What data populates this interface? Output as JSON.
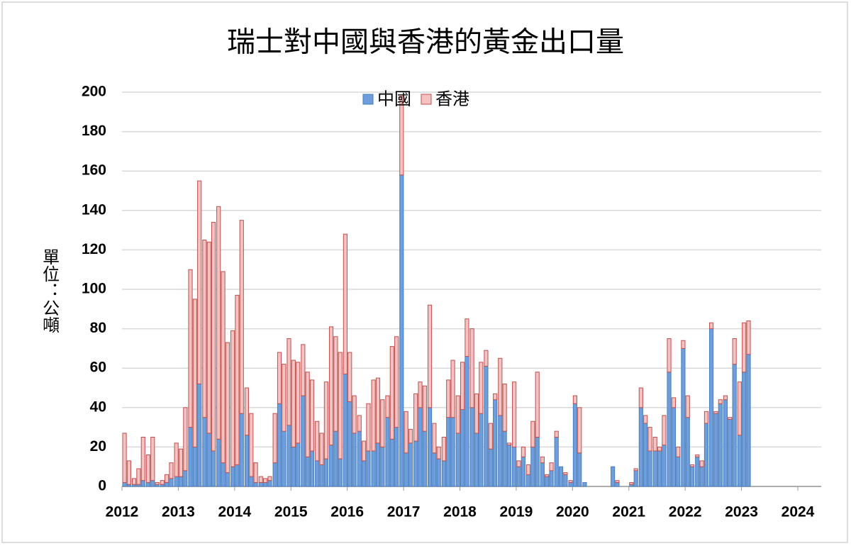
{
  "chart_data": {
    "type": "stacked-bar",
    "title": "瑞士對中國與香港的黃金出口量",
    "y_label": "單位：公噸",
    "xlim": [
      2012,
      2024
    ],
    "xticks": [
      2012,
      2013,
      2014,
      2015,
      2016,
      2017,
      2018,
      2019,
      2020,
      2021,
      2022,
      2023,
      2024
    ],
    "ylim": [
      0,
      200
    ],
    "yticks": [
      0,
      20,
      40,
      60,
      80,
      100,
      120,
      140,
      160,
      180,
      200
    ],
    "grid": true,
    "legend": "top",
    "x": [
      2012.0,
      2012.08,
      2012.17,
      2012.25,
      2012.33,
      2012.42,
      2012.5,
      2012.58,
      2012.67,
      2012.75,
      2012.83,
      2012.92,
      2013.0,
      2013.08,
      2013.17,
      2013.25,
      2013.33,
      2013.42,
      2013.5,
      2013.58,
      2013.67,
      2013.75,
      2013.83,
      2013.92,
      2014.0,
      2014.08,
      2014.17,
      2014.25,
      2014.33,
      2014.42,
      2014.5,
      2014.58,
      2014.67,
      2014.75,
      2014.83,
      2014.92,
      2015.0,
      2015.08,
      2015.17,
      2015.25,
      2015.33,
      2015.42,
      2015.5,
      2015.58,
      2015.67,
      2015.75,
      2015.83,
      2015.92,
      2016.0,
      2016.08,
      2016.17,
      2016.25,
      2016.33,
      2016.42,
      2016.5,
      2016.58,
      2016.67,
      2016.75,
      2016.83,
      2016.92,
      2017.0,
      2017.08,
      2017.17,
      2017.25,
      2017.33,
      2017.42,
      2017.5,
      2017.58,
      2017.67,
      2017.75,
      2017.83,
      2017.92,
      2018.0,
      2018.08,
      2018.17,
      2018.25,
      2018.33,
      2018.42,
      2018.5,
      2018.58,
      2018.67,
      2018.75,
      2018.83,
      2018.92,
      2019.0,
      2019.08,
      2019.17,
      2019.25,
      2019.33,
      2019.42,
      2019.5,
      2019.58,
      2019.67,
      2019.75,
      2019.83,
      2019.92,
      2020.0,
      2020.08,
      2020.17,
      2020.25,
      2020.33,
      2020.42,
      2020.5,
      2020.58,
      2020.67,
      2020.75,
      2020.83,
      2020.92,
      2021.0,
      2021.08,
      2021.17,
      2021.25,
      2021.33,
      2021.42,
      2021.5,
      2021.58,
      2021.67,
      2021.75,
      2021.83,
      2021.92,
      2022.0,
      2022.08,
      2022.17,
      2022.25,
      2022.33,
      2022.42,
      2022.5,
      2022.58,
      2022.67,
      2022.75,
      2022.83,
      2022.92,
      2023.0,
      2023.08
    ],
    "series": [
      {
        "name": "中國",
        "color": "#6f9edd",
        "values": [
          2,
          1,
          1,
          1,
          3,
          2,
          3,
          1,
          1,
          2,
          4,
          5,
          5,
          8,
          30,
          20,
          52,
          35,
          27,
          18,
          24,
          12,
          7,
          10,
          11,
          37,
          26,
          5,
          2,
          2,
          2,
          3,
          12,
          42,
          28,
          31,
          20,
          22,
          46,
          15,
          18,
          13,
          11,
          14,
          21,
          28,
          14,
          57,
          43,
          27,
          28,
          13,
          18,
          18,
          22,
          20,
          35,
          24,
          30,
          158,
          17,
          22,
          23,
          40,
          28,
          40,
          17,
          14,
          13,
          35,
          35,
          27,
          39,
          66,
          40,
          27,
          37,
          61,
          19,
          44,
          36,
          28,
          21,
          20,
          10,
          15,
          6,
          20,
          25,
          12,
          5,
          8,
          25,
          10,
          6,
          2,
          42,
          17,
          2,
          0,
          0,
          0,
          0,
          0,
          10,
          2,
          0,
          0,
          1,
          8,
          40,
          32,
          18,
          18,
          18,
          21,
          58,
          40,
          15,
          70,
          35,
          10,
          15,
          10,
          32,
          80,
          37,
          42,
          44,
          34,
          62,
          26,
          58,
          67
        ]
      },
      {
        "name": "香港",
        "color": "#f3c2c2",
        "values": [
          25,
          12,
          3,
          8,
          22,
          14,
          22,
          1,
          2,
          4,
          8,
          17,
          14,
          32,
          80,
          75,
          103,
          90,
          97,
          116,
          118,
          97,
          66,
          69,
          86,
          98,
          24,
          32,
          10,
          3,
          2,
          2,
          25,
          26,
          34,
          44,
          44,
          41,
          26,
          43,
          36,
          20,
          16,
          39,
          60,
          48,
          54,
          71,
          25,
          19,
          8,
          10,
          24,
          36,
          33,
          24,
          11,
          47,
          46,
          40,
          21,
          7,
          24,
          13,
          23,
          52,
          15,
          6,
          12,
          19,
          29,
          19,
          24,
          19,
          40,
          20,
          26,
          8,
          13,
          3,
          29,
          24,
          1,
          33,
          3,
          5,
          5,
          13,
          33,
          3,
          1,
          4,
          3,
          0,
          1,
          1,
          4,
          23,
          0,
          0,
          0,
          0,
          0,
          0,
          0,
          1,
          0,
          0,
          1,
          1,
          10,
          4,
          12,
          7,
          2,
          15,
          17,
          5,
          5,
          4,
          11,
          1,
          1,
          3,
          6,
          3,
          1,
          2,
          2,
          1,
          13,
          27,
          25,
          17
        ]
      }
    ]
  }
}
